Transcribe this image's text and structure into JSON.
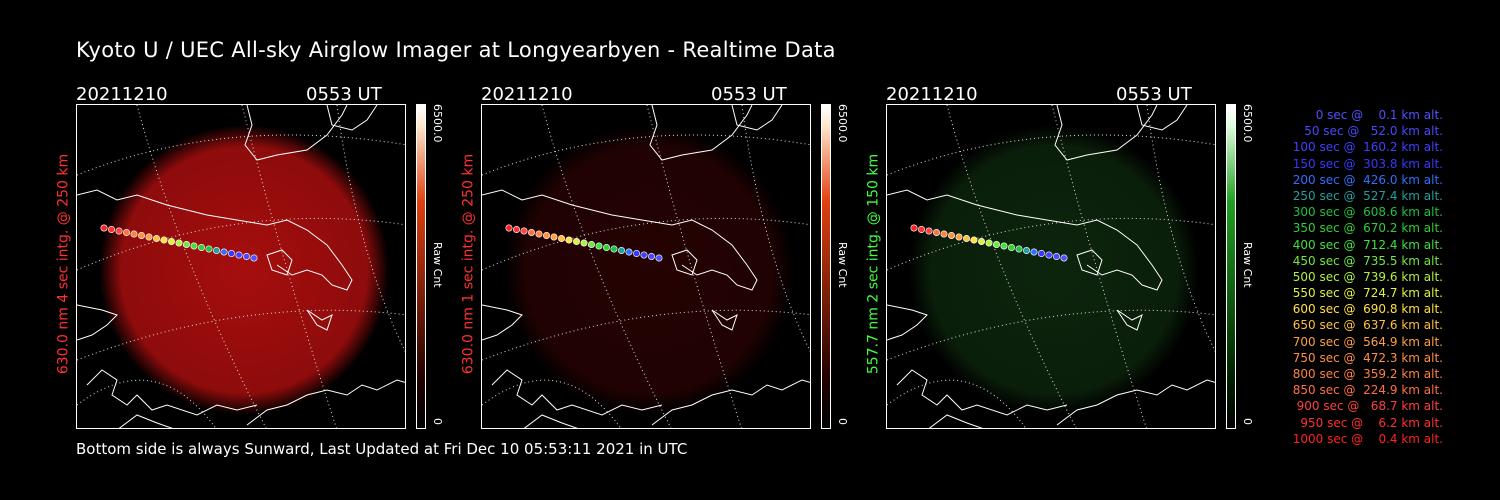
{
  "title": "Kyoto U / UEC All-sky Airglow Imager at Longyearbyen - Realtime Data",
  "footer": "Bottom side is always Sunward, Last Updated at Fri Dec 10 05:53:11 2021 in UTC",
  "panels": [
    {
      "date": "20211210",
      "time": "0553 UT",
      "ylabel": "630.0 nm 4 sec intg. @ 250 km",
      "color": "#ff3030",
      "glow_color": "#c41010",
      "glow_level": 0.85,
      "cbar_max": "6500.0",
      "cbar_min": "0",
      "cbar_label": "Raw Cnt",
      "cbar_top_color": "#e04010"
    },
    {
      "date": "20211210",
      "time": "0553 UT",
      "ylabel": "630.0 nm 1 sec intg. @ 250 km",
      "color": "#ff3030",
      "glow_color": "#6a0606",
      "glow_level": 0.35,
      "cbar_max": "6500.0",
      "cbar_min": "0",
      "cbar_label": "Raw Cnt",
      "cbar_top_color": "#e04010"
    },
    {
      "date": "20211210",
      "time": "0553 UT",
      "ylabel": "557.7 nm 2 sec intg. @ 150 km",
      "color": "#40ff40",
      "glow_color": "#1e5a1e",
      "glow_level": 0.4,
      "cbar_max": "6500.0",
      "cbar_min": "0",
      "cbar_label": "Raw Cnt",
      "cbar_top_color": "#20a020"
    }
  ],
  "legend": [
    {
      "text": "0 sec @    0.1 km alt.",
      "color": "#5050ff"
    },
    {
      "text": "50 sec @   52.0 km alt.",
      "color": "#4848ff"
    },
    {
      "text": "100 sec @  160.2 km alt.",
      "color": "#4040ff"
    },
    {
      "text": "150 sec @  303.8 km alt.",
      "color": "#3838ff"
    },
    {
      "text": "200 sec @  426.0 km alt.",
      "color": "#3070ff"
    },
    {
      "text": "250 sec @  527.4 km alt.",
      "color": "#20a0a0"
    },
    {
      "text": "300 sec @  608.6 km alt.",
      "color": "#20c040"
    },
    {
      "text": "350 sec @  670.2 km alt.",
      "color": "#30d030"
    },
    {
      "text": "400 sec @  712.4 km alt.",
      "color": "#40e040"
    },
    {
      "text": "450 sec @  735.5 km alt.",
      "color": "#70e840"
    },
    {
      "text": "500 sec @  739.6 km alt.",
      "color": "#b0f040"
    },
    {
      "text": "550 sec @  724.7 km alt.",
      "color": "#e0f040"
    },
    {
      "text": "600 sec @  690.8 km alt.",
      "color": "#ffe040"
    },
    {
      "text": "650 sec @  637.6 km alt.",
      "color": "#ffc040"
    },
    {
      "text": "700 sec @  564.9 km alt.",
      "color": "#ffa040"
    },
    {
      "text": "750 sec @  472.3 km alt.",
      "color": "#ff9040"
    },
    {
      "text": "800 sec @  359.2 km alt.",
      "color": "#ff8040"
    },
    {
      "text": "850 sec @  224.9 km alt.",
      "color": "#ff7040"
    },
    {
      "text": "900 sec @   68.7 km alt.",
      "color": "#ff4040"
    },
    {
      "text": "950 sec @    6.2 km alt.",
      "color": "#ff3030"
    },
    {
      "text": "1000 sec @    0.4 km alt.",
      "color": "#ff2020"
    }
  ]
}
